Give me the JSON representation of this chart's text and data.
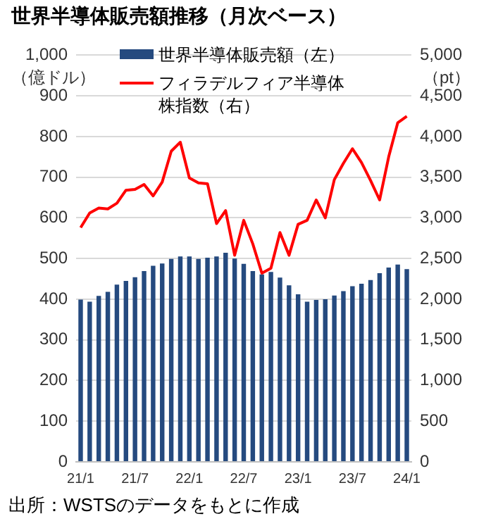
{
  "chart_data": {
    "type": "bar",
    "title": "世界半導体販売額推移（月次ベース）",
    "ylabel": "（億ドル）",
    "y2label": "（pt）",
    "categories": [
      "21/1",
      null,
      null,
      null,
      null,
      null,
      "21/7",
      null,
      null,
      null,
      null,
      null,
      "22/1",
      null,
      null,
      null,
      null,
      null,
      "22/7",
      null,
      null,
      null,
      null,
      null,
      "23/1",
      null,
      null,
      null,
      null,
      null,
      "23/7",
      null,
      null,
      null,
      null,
      null,
      "24/1"
    ],
    "series": [
      {
        "name": "世界半導体販売額（左）",
        "color": "#254a7f",
        "values": [
          399,
          394,
          408,
          418,
          436,
          445,
          454,
          469,
          482,
          488,
          499,
          505,
          505,
          499,
          502,
          505,
          514,
          500,
          487,
          469,
          461,
          467,
          453,
          434,
          412,
          394,
          398,
          400,
          409,
          420,
          432,
          438,
          447,
          464,
          478,
          485,
          474
        ]
      },
      {
        "name": "フィラデルフィア半導体株指数（右）",
        "type": "line",
        "axis": "y2",
        "color": "#ff0000",
        "values": [
          2880,
          3060,
          3120,
          3110,
          3180,
          3340,
          3350,
          3410,
          3270,
          3440,
          3820,
          3930,
          3490,
          3430,
          3420,
          2930,
          3090,
          2540,
          2970,
          2680,
          2320,
          2380,
          2820,
          2540,
          2920,
          2970,
          3220,
          3000,
          3470,
          3670,
          3850,
          3680,
          3460,
          3220,
          3750,
          4170,
          4250
        ]
      }
    ],
    "ylim": [
      0,
      1000
    ],
    "yticks": [
      0,
      100,
      200,
      300,
      400,
      500,
      600,
      700,
      800,
      900,
      {
        "value": 1000,
        "label": "1,000"
      }
    ],
    "y2lim": [
      0,
      5000
    ],
    "y2ticks": [
      0,
      500,
      {
        "value": 1000,
        "label": "1,000"
      },
      {
        "value": 1500,
        "label": "1,500"
      },
      {
        "value": 2000,
        "label": "2,000"
      },
      {
        "value": 2500,
        "label": "2,500"
      },
      {
        "value": 3000,
        "label": "3,000"
      },
      {
        "value": 3500,
        "label": "3,500"
      },
      {
        "value": 4000,
        "label": "4,000"
      },
      {
        "value": 4500,
        "label": "4,500"
      },
      {
        "value": 5000,
        "label": "5,000"
      }
    ],
    "grid": "y",
    "legend": "top",
    "marker": "none",
    "annotations": [
      "出所：WSTSのデータをもとに作成"
    ]
  }
}
